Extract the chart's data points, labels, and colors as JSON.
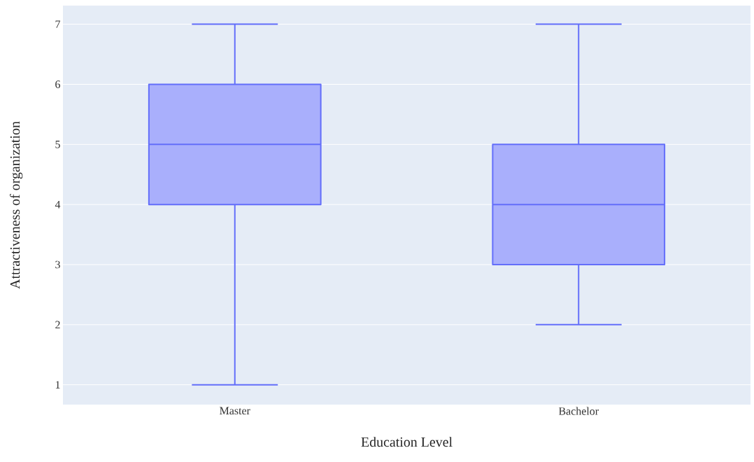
{
  "chart_data": {
    "type": "box",
    "xlabel": "Education Level",
    "ylabel": "Attractiveness of organization",
    "categories": [
      "Master",
      "Bachelor"
    ],
    "boxes": [
      {
        "low": 1,
        "q1": 4,
        "median": 5,
        "q3": 6,
        "high": 7
      },
      {
        "low": 2,
        "q1": 3,
        "median": 4,
        "q3": 5,
        "high": 7
      }
    ],
    "color": "#636efa",
    "ylim": [
      0.67,
      7.31
    ],
    "yticks": [
      1,
      2,
      3,
      4,
      5,
      6,
      7
    ],
    "grid": "y"
  }
}
